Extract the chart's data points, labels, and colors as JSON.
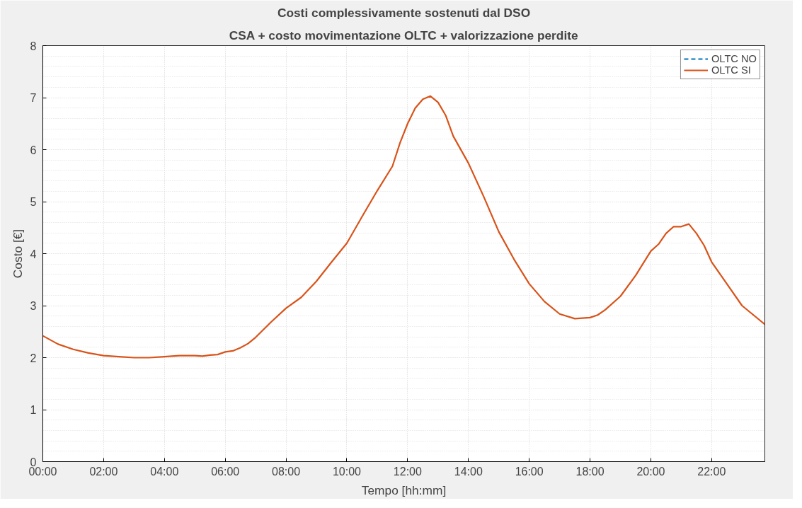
{
  "chart_data": {
    "type": "line",
    "title": "Costi complessivamente sostenuti dal DSO",
    "subtitle": "CSA + costo movimentazione OLTC + valorizzazione perdite",
    "xlabel": "Tempo [hh:mm]",
    "ylabel": "Costo [€]",
    "x": [
      0,
      0.5,
      1,
      1.5,
      2,
      2.5,
      3,
      3.5,
      4,
      4.5,
      5,
      5.25,
      5.5,
      5.75,
      6,
      6.25,
      6.5,
      6.75,
      7,
      7.5,
      8,
      8.5,
      9,
      9.5,
      10,
      10.5,
      11,
      11.5,
      11.75,
      12,
      12.25,
      12.5,
      12.75,
      13,
      13.25,
      13.5,
      14,
      14.5,
      15,
      15.5,
      16,
      16.5,
      17,
      17.5,
      18,
      18.25,
      18.5,
      19,
      19.5,
      20,
      20.25,
      20.5,
      20.75,
      21,
      21.25,
      21.5,
      21.75,
      22,
      22.5,
      23,
      23.75
    ],
    "series": [
      {
        "name": "OLTC NO",
        "color": "#0072bd",
        "line_style": "dashed",
        "values": [
          null,
          null,
          null,
          null,
          null,
          null,
          null,
          null,
          null,
          null,
          null,
          null,
          null,
          null,
          null,
          null,
          null,
          null,
          null,
          null,
          null,
          null,
          null,
          null,
          null,
          null,
          null,
          null,
          null,
          null,
          null,
          null,
          null,
          null,
          null,
          null,
          null,
          null,
          null,
          null,
          null,
          null,
          null,
          null,
          null,
          null,
          null,
          null,
          null,
          null,
          null,
          null,
          null,
          null,
          null,
          null,
          null,
          null,
          null,
          null,
          null
        ]
      },
      {
        "name": "OLTC SI",
        "color": "#d95319",
        "line_style": "solid",
        "values": [
          2.42,
          2.26,
          2.16,
          2.09,
          2.04,
          2.02,
          2.0,
          2.0,
          2.02,
          2.04,
          2.04,
          2.03,
          2.05,
          2.06,
          2.11,
          2.13,
          2.19,
          2.27,
          2.39,
          2.68,
          2.95,
          3.16,
          3.47,
          3.84,
          4.2,
          4.71,
          5.21,
          5.68,
          6.13,
          6.5,
          6.8,
          6.97,
          7.03,
          6.91,
          6.66,
          6.26,
          5.74,
          5.1,
          4.42,
          3.89,
          3.42,
          3.08,
          2.84,
          2.75,
          2.77,
          2.82,
          2.92,
          3.18,
          3.58,
          4.05,
          4.18,
          4.39,
          4.52,
          4.52,
          4.57,
          4.39,
          4.16,
          3.84,
          3.42,
          3.0,
          2.64
        ]
      }
    ],
    "xlim": [
      0,
      23.75
    ],
    "ylim": [
      0,
      8
    ],
    "xticks": [
      {
        "value": 0,
        "label": "00:00"
      },
      {
        "value": 2,
        "label": "02:00"
      },
      {
        "value": 4,
        "label": "04:00"
      },
      {
        "value": 6,
        "label": "06:00"
      },
      {
        "value": 8,
        "label": "08:00"
      },
      {
        "value": 10,
        "label": "10:00"
      },
      {
        "value": 12,
        "label": "12:00"
      },
      {
        "value": 14,
        "label": "14:00"
      },
      {
        "value": 16,
        "label": "16:00"
      },
      {
        "value": 18,
        "label": "18:00"
      },
      {
        "value": 20,
        "label": "20:00"
      },
      {
        "value": 22,
        "label": "22:00"
      }
    ],
    "yticks": [
      0,
      1,
      2,
      3,
      4,
      5,
      6,
      7,
      8
    ],
    "grid": true,
    "legend": "top right",
    "marker": "none"
  }
}
